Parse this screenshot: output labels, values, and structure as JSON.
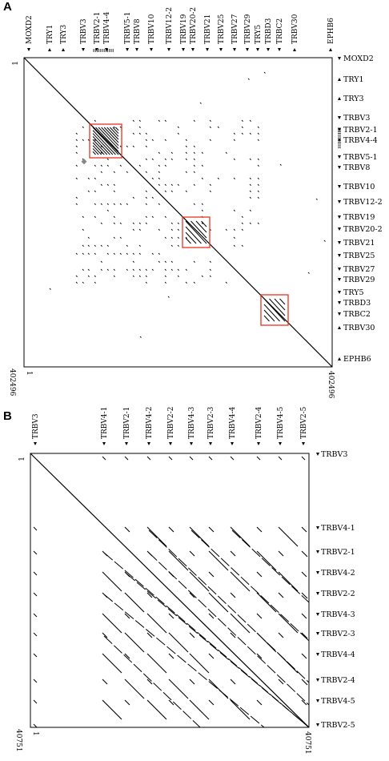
{
  "panels": [
    {
      "label": "A",
      "start_label": "1",
      "end_label": "402496",
      "genes": [
        {
          "name": "MOXD2",
          "strand": "-",
          "top": true
        },
        {
          "name": "TRY1",
          "strand": "+",
          "top": true
        },
        {
          "name": "TRY3",
          "strand": "+",
          "top": true
        },
        {
          "name": "TRBV3",
          "strand": "-",
          "top": true
        },
        {
          "name": "TRBV2-1",
          "strand": "-",
          "top": true
        },
        {
          "name": "TRBV4-4",
          "strand": "-",
          "top": true
        },
        {
          "name": "TRBV5-1",
          "strand": "-",
          "top": true
        },
        {
          "name": "TRBV8",
          "strand": "-",
          "top": true
        },
        {
          "name": "TRBV10",
          "strand": "-",
          "top": true
        },
        {
          "name": "TRBV12-2",
          "strand": "-",
          "top": true
        },
        {
          "name": "TRBV19",
          "strand": "-",
          "top": true
        },
        {
          "name": "TRBV20-2",
          "strand": "-",
          "top": true
        },
        {
          "name": "TRBV21",
          "strand": "-",
          "top": true
        },
        {
          "name": "TRBV25",
          "strand": "-",
          "top": true
        },
        {
          "name": "TRBV27",
          "strand": "-",
          "top": true
        },
        {
          "name": "TRBV29",
          "strand": "-",
          "top": true
        },
        {
          "name": "TRY5",
          "strand": "-",
          "top": true
        },
        {
          "name": "TRBD3",
          "strand": "-",
          "top": true
        },
        {
          "name": "TRBC2",
          "strand": "-",
          "top": true
        },
        {
          "name": "TRBV30",
          "strand": "+",
          "top": true
        },
        {
          "name": "EPHB6",
          "strand": "+",
          "top": true
        }
      ],
      "highlight_boxes": 3
    },
    {
      "label": "B",
      "start_label": "1",
      "end_label": "40751",
      "genes": [
        {
          "name": "TRBV3",
          "strand": "-"
        },
        {
          "name": "TRBV4-1",
          "strand": "-"
        },
        {
          "name": "TRBV2-1",
          "strand": "-"
        },
        {
          "name": "TRBV4-2",
          "strand": "-"
        },
        {
          "name": "TRBV2-2",
          "strand": "-"
        },
        {
          "name": "TRBV4-3",
          "strand": "-"
        },
        {
          "name": "TRBV2-3",
          "strand": "-"
        },
        {
          "name": "TRBV4-4",
          "strand": "-"
        },
        {
          "name": "TRBV2-4",
          "strand": "-"
        },
        {
          "name": "TRBV4-5",
          "strand": "-"
        },
        {
          "name": "TRBV2-5",
          "strand": "-"
        }
      ]
    }
  ],
  "colors": {
    "line": "#000000",
    "highlight": "#e8321e",
    "dot": "#111111"
  }
}
